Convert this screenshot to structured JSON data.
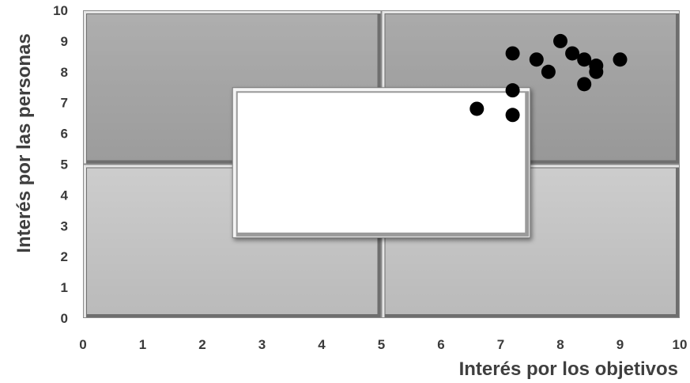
{
  "chart_data": {
    "type": "scatter",
    "title": "",
    "xlabel": "Interés por los objetivos",
    "ylabel": "Interés por las personas",
    "xlim": [
      0,
      10
    ],
    "ylim": [
      0,
      10
    ],
    "x_ticks": [
      "0",
      "1",
      "2",
      "3",
      "4",
      "5",
      "6",
      "7",
      "8",
      "9",
      "10"
    ],
    "y_ticks": [
      "0",
      "1",
      "2",
      "3",
      "4",
      "5",
      "6",
      "7",
      "8",
      "9",
      "10"
    ],
    "grid": false,
    "legend": "none",
    "quadrants": [
      {
        "name": "top-left",
        "x": [
          0,
          5
        ],
        "y": [
          5,
          10
        ],
        "color": "#a7a7a7"
      },
      {
        "name": "top-right",
        "x": [
          5,
          10
        ],
        "y": [
          5,
          10
        ],
        "color": "#9b9b9b"
      },
      {
        "name": "bottom-left",
        "x": [
          0,
          5
        ],
        "y": [
          0,
          5
        ],
        "color": "#c4c4c4"
      },
      {
        "name": "bottom-right",
        "x": [
          5,
          10
        ],
        "y": [
          0,
          5
        ],
        "color": "#c4c4c4"
      }
    ],
    "center_box": {
      "x": [
        2.5,
        7.5
      ],
      "y": [
        2.6,
        7.5
      ],
      "color": "#ffffff"
    },
    "series": [
      {
        "color": "#000000",
        "points": [
          {
            "x": 8.0,
            "y": 9.0
          },
          {
            "x": 7.2,
            "y": 8.6
          },
          {
            "x": 7.6,
            "y": 8.4
          },
          {
            "x": 8.2,
            "y": 8.6
          },
          {
            "x": 8.4,
            "y": 8.4
          },
          {
            "x": 8.6,
            "y": 8.2
          },
          {
            "x": 9.0,
            "y": 8.4
          },
          {
            "x": 7.8,
            "y": 8.0
          },
          {
            "x": 8.6,
            "y": 8.0
          },
          {
            "x": 8.4,
            "y": 7.6
          },
          {
            "x": 7.2,
            "y": 7.4
          },
          {
            "x": 6.6,
            "y": 6.8
          },
          {
            "x": 7.2,
            "y": 6.6
          }
        ]
      }
    ]
  }
}
